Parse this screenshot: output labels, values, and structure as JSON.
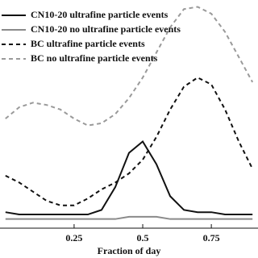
{
  "chart_data": {
    "type": "line",
    "xlabel": "Fraction of day",
    "x": [
      0,
      0.05,
      0.1,
      0.15,
      0.2,
      0.25,
      0.3,
      0.35,
      0.4,
      0.45,
      0.5,
      0.55,
      0.6,
      0.65,
      0.7,
      0.75,
      0.8,
      0.85,
      0.9
    ],
    "xlim": [
      -0.02,
      0.92
    ],
    "xticks": [
      0.25,
      0.5,
      0.75
    ],
    "ylim": [
      0,
      1
    ],
    "series": [
      {
        "name": "CN10-20 ultrafine particle events",
        "color": "#111111",
        "dash": false,
        "values": [
          0.07,
          0.06,
          0.06,
          0.06,
          0.06,
          0.06,
          0.06,
          0.08,
          0.18,
          0.33,
          0.38,
          0.28,
          0.14,
          0.08,
          0.07,
          0.07,
          0.06,
          0.06,
          0.06
        ]
      },
      {
        "name": "CN10-20 no ultrafine particle events",
        "color": "#8a8a8a",
        "dash": false,
        "values": [
          0.04,
          0.04,
          0.04,
          0.04,
          0.04,
          0.04,
          0.04,
          0.04,
          0.04,
          0.05,
          0.05,
          0.05,
          0.04,
          0.04,
          0.04,
          0.04,
          0.04,
          0.04,
          0.04
        ]
      },
      {
        "name": "BC ultrafine particle events",
        "color": "#111111",
        "dash": true,
        "values": [
          0.23,
          0.2,
          0.16,
          0.12,
          0.1,
          0.1,
          0.13,
          0.17,
          0.2,
          0.24,
          0.3,
          0.4,
          0.52,
          0.62,
          0.66,
          0.63,
          0.52,
          0.38,
          0.26
        ]
      },
      {
        "name": "BC no ultrafine particle events",
        "color": "#9a9a9a",
        "dash": true,
        "values": [
          0.48,
          0.53,
          0.55,
          0.54,
          0.52,
          0.48,
          0.45,
          0.46,
          0.5,
          0.57,
          0.66,
          0.77,
          0.88,
          0.96,
          0.97,
          0.94,
          0.86,
          0.75,
          0.64
        ]
      }
    ]
  }
}
